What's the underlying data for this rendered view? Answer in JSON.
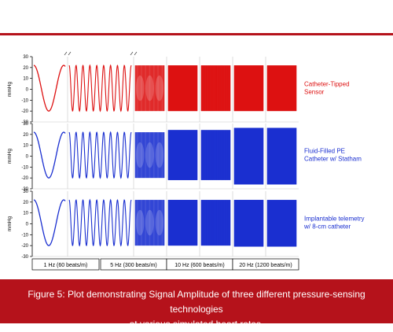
{
  "caption": {
    "line1": "Figure 5: Plot demonstrating Signal Amplitude of three different pressure-sensing technologies",
    "line2": "at various simulated heart rates."
  },
  "colors": {
    "accent": "#b5121b",
    "catheter_tipped": "#dd1111",
    "fluid_filled": "#1a2fd0",
    "implantable": "#1a2fd0",
    "axis": "#000000"
  },
  "chart_data": {
    "type": "line",
    "ylabel": "mmHg",
    "ylim": [
      -30,
      30
    ],
    "yticks": [
      30,
      20,
      10,
      0,
      -10,
      -20,
      -30
    ],
    "frequency_labels": [
      "1 Hz (60 beats/m)",
      "5 Hz (300 beats/m)",
      "10 Hz (600 beats/m)",
      "20 Hz (1200 beats/m)"
    ],
    "panels": [
      {
        "name_lines": [
          "Catheter-Tipped",
          "Sensor"
        ],
        "color": "#dd1111",
        "segments": [
          {
            "frequency_hz": 1,
            "max": 22,
            "min": -20
          },
          {
            "frequency_hz": 5,
            "max": 22,
            "min": -20
          },
          {
            "frequency_hz": 10,
            "max": 22,
            "min": -20
          },
          {
            "frequency_hz": 20,
            "max": 22,
            "min": -20
          }
        ]
      },
      {
        "name_lines": [
          "Fluid-Filled PE",
          "Catheter w/ Statham"
        ],
        "color": "#1a2fd0",
        "segments": [
          {
            "frequency_hz": 1,
            "max": 22,
            "min": -20
          },
          {
            "frequency_hz": 5,
            "max": 22,
            "min": -20
          },
          {
            "frequency_hz": 10,
            "max": 24,
            "min": -22
          },
          {
            "frequency_hz": 20,
            "max": 26,
            "min": -26
          }
        ]
      },
      {
        "name_lines": [
          "Implantable telemetry",
          "w/ 8-cm catheter"
        ],
        "color": "#1a2fd0",
        "segments": [
          {
            "frequency_hz": 1,
            "max": 22,
            "min": -20
          },
          {
            "frequency_hz": 5,
            "max": 22,
            "min": -20
          },
          {
            "frequency_hz": 10,
            "max": 22,
            "min": -20
          },
          {
            "frequency_hz": 20,
            "max": 22,
            "min": -21
          }
        ]
      }
    ]
  }
}
